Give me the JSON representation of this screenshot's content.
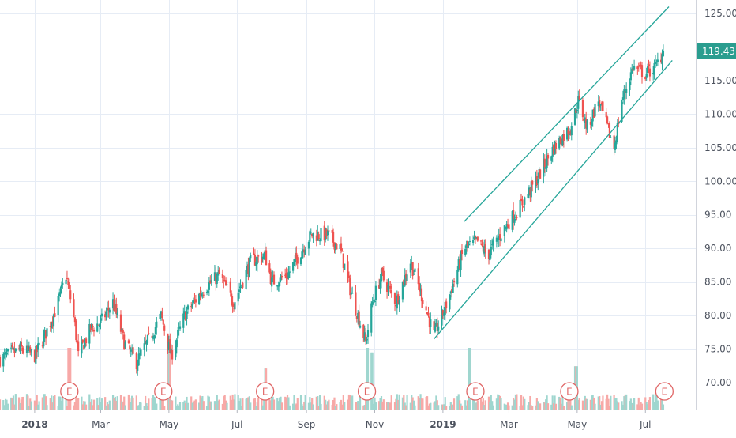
{
  "chart_data": {
    "type": "candlestick",
    "y_axis": {
      "ticks": [
        {
          "value": 125,
          "label": "125.00"
        },
        {
          "value": 120,
          "label": "120.00"
        },
        {
          "value": 115,
          "label": "115.00"
        },
        {
          "value": 110,
          "label": "110.00"
        },
        {
          "value": 105,
          "label": "105.00"
        },
        {
          "value": 100,
          "label": "100.00"
        },
        {
          "value": 95,
          "label": "95.00"
        },
        {
          "value": 90,
          "label": "90.00"
        },
        {
          "value": 85,
          "label": "85.00"
        },
        {
          "value": 80,
          "label": "80.00"
        },
        {
          "value": 75,
          "label": "75.00"
        },
        {
          "value": 70,
          "label": "70.00"
        }
      ],
      "range": [
        66,
        127
      ]
    },
    "x_axis": {
      "ticks": [
        "2018",
        "Mar",
        "May",
        "Jul",
        "Sep",
        "Nov",
        "2019",
        "Mar",
        "May",
        "Jul"
      ],
      "range": [
        "2017-12-01",
        "2019-08-15"
      ]
    },
    "last_price": {
      "value": 119.43,
      "label": "119.43"
    },
    "trend_channel": [
      {
        "name": "upper",
        "from": {
          "date": "2019-01-20",
          "value": 94
        },
        "to": {
          "date": "2019-07-22",
          "value": 126
        }
      },
      {
        "name": "lower",
        "from": {
          "date": "2018-12-24",
          "value": 76.5
        },
        "to": {
          "date": "2019-07-25",
          "value": 118
        }
      }
    ],
    "price_path": [
      [
        "2017-12-01",
        73.5
      ],
      [
        "2017-12-20",
        75
      ],
      [
        "2018-01-01",
        74
      ],
      [
        "2018-01-10",
        77
      ],
      [
        "2018-01-20",
        81
      ],
      [
        "2018-01-29",
        86
      ],
      [
        "2018-02-05",
        80
      ],
      [
        "2018-02-09",
        74
      ],
      [
        "2018-02-20",
        78
      ],
      [
        "2018-03-01",
        79
      ],
      [
        "2018-03-12",
        82
      ],
      [
        "2018-03-22",
        76
      ],
      [
        "2018-04-02",
        73
      ],
      [
        "2018-04-15",
        77
      ],
      [
        "2018-04-24",
        80
      ],
      [
        "2018-05-03",
        74
      ],
      [
        "2018-05-15",
        80
      ],
      [
        "2018-06-01",
        84
      ],
      [
        "2018-06-15",
        86
      ],
      [
        "2018-06-28",
        82
      ],
      [
        "2018-07-13",
        88
      ],
      [
        "2018-07-26",
        89
      ],
      [
        "2018-08-01",
        85
      ],
      [
        "2018-08-15",
        86
      ],
      [
        "2018-08-25",
        89
      ],
      [
        "2018-09-05",
        92
      ],
      [
        "2018-09-20",
        92
      ],
      [
        "2018-10-01",
        90
      ],
      [
        "2018-10-10",
        84
      ],
      [
        "2018-10-24",
        76
      ],
      [
        "2018-10-30",
        82
      ],
      [
        "2018-11-07",
        86
      ],
      [
        "2018-11-20",
        82
      ],
      [
        "2018-12-03",
        88
      ],
      [
        "2018-12-15",
        82
      ],
      [
        "2018-12-24",
        77
      ],
      [
        "2019-01-05",
        82
      ],
      [
        "2019-01-20",
        90
      ],
      [
        "2019-02-01",
        91
      ],
      [
        "2019-02-10",
        89
      ],
      [
        "2019-02-25",
        93
      ],
      [
        "2019-03-10",
        96
      ],
      [
        "2019-03-25",
        100
      ],
      [
        "2019-04-10",
        105
      ],
      [
        "2019-04-25",
        108
      ],
      [
        "2019-05-02",
        112
      ],
      [
        "2019-05-10",
        108
      ],
      [
        "2019-05-20",
        112
      ],
      [
        "2019-06-03",
        105
      ],
      [
        "2019-06-10",
        112
      ],
      [
        "2019-06-20",
        117
      ],
      [
        "2019-07-01",
        116
      ],
      [
        "2019-07-10",
        117
      ],
      [
        "2019-07-17",
        119.43
      ]
    ],
    "volume_spikes": [
      [
        "2018-02-01",
        1.0
      ],
      [
        "2018-05-01",
        0.9
      ],
      [
        "2018-07-27",
        0.55
      ],
      [
        "2018-10-26",
        1.0
      ],
      [
        "2018-10-29",
        0.9
      ],
      [
        "2019-01-25",
        1.0
      ],
      [
        "2019-04-30",
        0.6
      ]
    ],
    "earnings": [
      {
        "date": "2018-02-01",
        "label": "E"
      },
      {
        "date": "2018-04-26",
        "label": "E"
      },
      {
        "date": "2018-07-26",
        "label": "E"
      },
      {
        "date": "2018-10-25",
        "label": "E"
      },
      {
        "date": "2019-01-30",
        "label": "E"
      },
      {
        "date": "2019-04-24",
        "label": "E"
      },
      {
        "date": "2019-07-18",
        "label": "E"
      }
    ]
  },
  "colors": {
    "up": "#26a69a",
    "down": "#ef5350",
    "volume_up": "#9fd6cf",
    "volume_down": "#f7a9a7",
    "grid": "#e6ecf5",
    "axis_text": "#4c525e",
    "price_badge": "#2a9d8f",
    "earnings": "#e06666",
    "channel": "#26a69a"
  }
}
